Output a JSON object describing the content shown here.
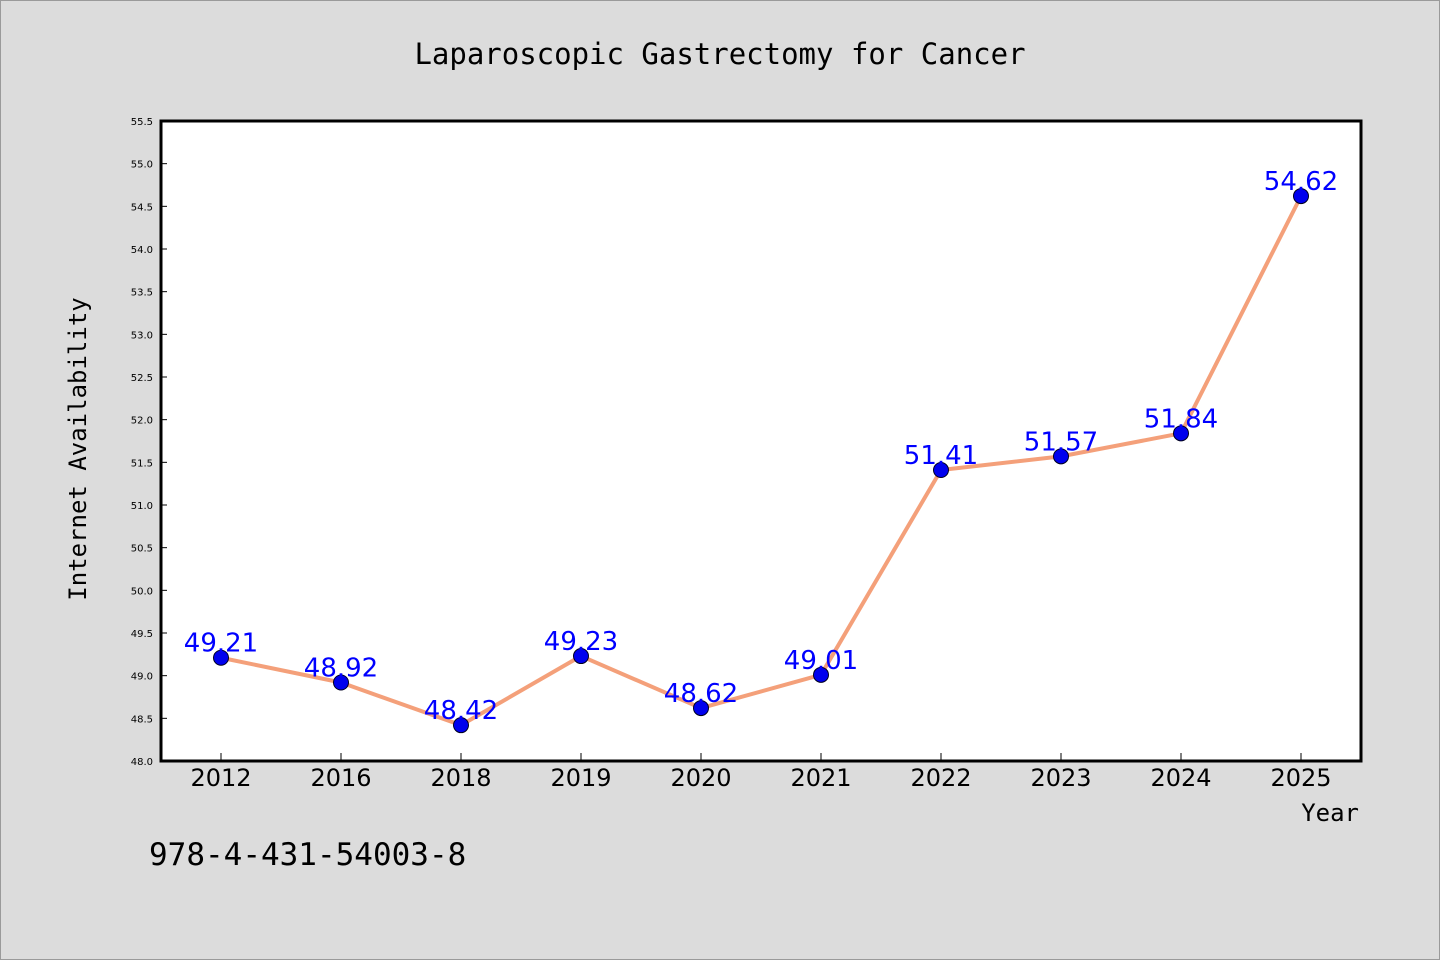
{
  "chart_data": {
    "type": "line",
    "title": "Laparoscopic Gastrectomy for Cancer",
    "xlabel": "Year",
    "ylabel": "Internet Availability",
    "categories": [
      "2012",
      "2016",
      "2018",
      "2019",
      "2020",
      "2021",
      "2022",
      "2023",
      "2024",
      "2025"
    ],
    "series": [
      {
        "values": [
          49.21,
          48.92,
          48.42,
          49.23,
          48.62,
          49.01,
          51.41,
          51.57,
          51.84,
          54.62
        ],
        "labels": [
          "49.21",
          "48.92",
          "48.42",
          "49.23",
          "48.62",
          "49.01",
          "51.41",
          "51.57",
          "51.84",
          "54.62"
        ],
        "line_color": "#f4a07a",
        "marker_color": "#0000ee",
        "label_color": "#0000ff"
      }
    ],
    "ylim": [
      48.0,
      55.5
    ],
    "yticks": [
      "48.0",
      "48.5",
      "49.0",
      "49.5",
      "50.0",
      "50.5",
      "51.0",
      "51.5",
      "52.0",
      "52.5",
      "53.0",
      "53.5",
      "54.0",
      "54.5",
      "55.0",
      "55.5"
    ],
    "grid": false,
    "legend": "none"
  },
  "footer": {
    "code": "978-4-431-54003-8"
  },
  "colors": {
    "background": "#dcdcdc",
    "plot_background": "#ffffff",
    "axis": "#000000"
  }
}
